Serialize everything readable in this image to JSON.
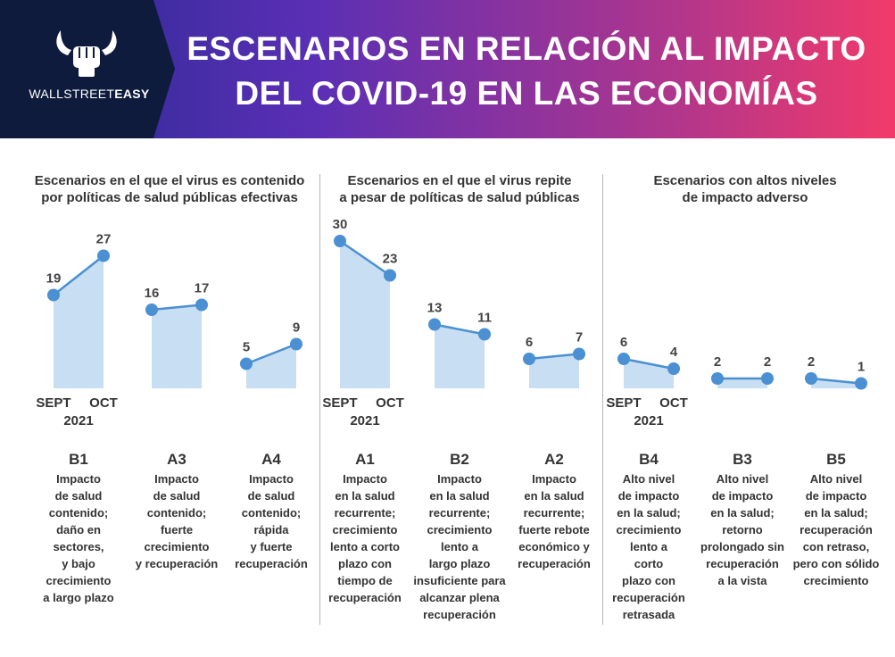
{
  "header": {
    "brand_regular": "WALLSTREET",
    "brand_bold": "EASY",
    "title_line1": "ESCENARIOS EN RELACIÓN AL IMPACTO",
    "title_line2": "DEL COVID-19 EN LAS ECONOMÍAS"
  },
  "groups": [
    {
      "title_line1": "Escenarios en el que el virus es contenido",
      "title_line2": "por políticas de salud públicas efectivas"
    },
    {
      "title_line1": "Escenarios en el que el virus repite",
      "title_line2": "a pesar de políticas de salud públicas"
    },
    {
      "title_line1": "Escenarios con altos niveles",
      "title_line2": "de impacto adverso"
    }
  ],
  "axis": {
    "start": "SEPT",
    "end": "OCT",
    "year": "2021"
  },
  "colors": {
    "line": "#4a90d2",
    "area": "#c8def2",
    "header_start": "#262a8f",
    "header_end": "#f23a6a",
    "logo_panel": "#0f1b3d"
  },
  "chart_data": {
    "type": "area",
    "x": [
      "SEPT 2021",
      "OCT 2021"
    ],
    "series": [
      {
        "name": "B1",
        "values": [
          19,
          27
        ],
        "description": [
          "Impacto",
          "de salud",
          "contenido;",
          "daño en",
          "sectores,",
          "y bajo",
          "crecimiento",
          "a largo plazo"
        ]
      },
      {
        "name": "A3",
        "values": [
          16,
          17
        ],
        "description": [
          "Impacto",
          "de salud",
          "contenido;",
          "fuerte",
          "crecimiento",
          "y recuperación"
        ]
      },
      {
        "name": "A4",
        "values": [
          5,
          9
        ],
        "description": [
          "Impacto",
          "de salud",
          "contenido;",
          "rápida",
          "y fuerte",
          "recuperación"
        ]
      },
      {
        "name": "A1",
        "values": [
          30,
          23
        ],
        "description": [
          "Impacto",
          "en la salud",
          "recurrente;",
          "crecimiento",
          "lento a corto",
          "plazo con",
          "tiempo de",
          "recuperación"
        ]
      },
      {
        "name": "B2",
        "values": [
          13,
          11
        ],
        "description": [
          "Impacto",
          "en la salud",
          "recurrente;",
          "crecimiento",
          "lento a",
          "largo plazo",
          "insuficiente para",
          "alcanzar plena",
          "recuperación"
        ]
      },
      {
        "name": "A2",
        "values": [
          6,
          7
        ],
        "description": [
          "Impacto",
          "en la salud",
          "recurrente;",
          "fuerte rebote",
          "económico y",
          "recuperación"
        ]
      },
      {
        "name": "B4",
        "values": [
          6,
          4
        ],
        "description": [
          "Alto nivel",
          "de impacto",
          "en la salud;",
          "crecimiento",
          "lento a",
          "corto",
          "plazo con",
          "recuperación",
          "retrasada"
        ]
      },
      {
        "name": "B3",
        "values": [
          2,
          2
        ],
        "description": [
          "Alto nivel",
          "de impacto",
          "en la salud;",
          "retorno",
          "prolongado sin",
          "recuperación",
          "a la vista"
        ]
      },
      {
        "name": "B5",
        "values": [
          2,
          1
        ],
        "description": [
          "Alto nivel",
          "de impacto",
          "en la salud;",
          "recuperación",
          "con retraso,",
          "pero con sólido",
          "crecimiento"
        ]
      }
    ],
    "ylim": [
      0,
      30
    ],
    "grid": false
  }
}
